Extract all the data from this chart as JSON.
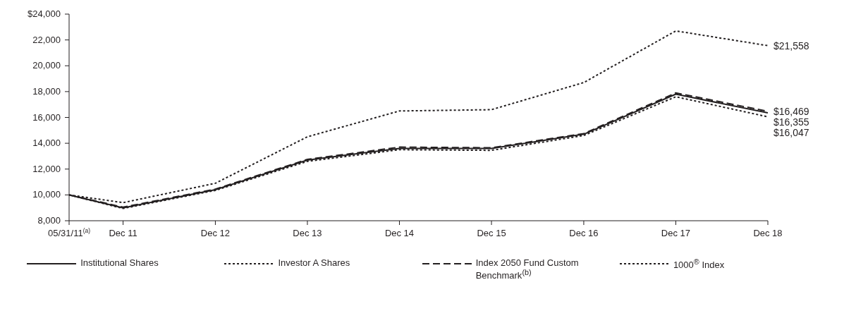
{
  "chart_data": {
    "type": "line",
    "x": [
      "2011-05-31",
      "2011-12-31",
      "2012-12-31",
      "2013-12-31",
      "2014-12-31",
      "2015-12-31",
      "2016-12-31",
      "2017-12-31",
      "2018-12-31"
    ],
    "series": [
      {
        "name": "Institutional Shares",
        "color": "#231f20",
        "line_style": "solid",
        "values": [
          10000,
          9000,
          10400,
          12700,
          13600,
          13600,
          14700,
          17800,
          16355
        ]
      },
      {
        "name": "Investor A Shares",
        "color": "#231f20",
        "line_style": "dotted",
        "values": [
          10000,
          8950,
          10350,
          12600,
          13500,
          13450,
          14600,
          17600,
          16047
        ]
      },
      {
        "name": "Index 2050 Fund Custom Benchmark$^{(b)}$",
        "color": "#231f20",
        "line_style": "dashed",
        "values": [
          10000,
          9050,
          10450,
          12750,
          13700,
          13650,
          14750,
          17900,
          16469
        ]
      },
      {
        "name": "1000$^{®}$ Index",
        "color": "#231f20",
        "line_style": "dotted",
        "values": [
          10000,
          9400,
          10900,
          14500,
          16500,
          16600,
          18700,
          22700,
          21558
        ]
      }
    ],
    "xlim": [
      "2011-05-31",
      "2018-12-31"
    ],
    "xticks": [
      {
        "value": "2011-05-31",
        "label": "05/31/11$^{(a)}$"
      },
      {
        "value": "2011-12-31",
        "label": "Dec 11"
      },
      {
        "value": "2012-12-31",
        "label": "Dec 12"
      },
      {
        "value": "2013-12-31",
        "label": "Dec 13"
      },
      {
        "value": "2014-12-31",
        "label": "Dec 14"
      },
      {
        "value": "2015-12-31",
        "label": "Dec 15"
      },
      {
        "value": "2016-12-31",
        "label": "Dec 16"
      },
      {
        "value": "2017-12-31",
        "label": "Dec 17"
      },
      {
        "value": "2018-12-31",
        "label": "Dec 18"
      }
    ],
    "ylim": [
      8000,
      24000
    ],
    "yticks": [
      {
        "value": 8000,
        "label": "8,000"
      },
      {
        "value": 10000,
        "label": "10,000"
      },
      {
        "value": 12000,
        "label": "12,000"
      },
      {
        "value": 14000,
        "label": "14,000"
      },
      {
        "value": 16000,
        "label": "16,000"
      },
      {
        "value": 18000,
        "label": "18,000"
      },
      {
        "value": 20000,
        "label": "20,000"
      },
      {
        "value": 22000,
        "label": "22,000"
      },
      {
        "value": 24000,
        "label": "$24,000"
      }
    ],
    "annotations": [
      {
        "text": "$21,558",
        "x": "2018-12-31",
        "y": 21558
      },
      {
        "text": "$16,469",
        "x": "2018-12-31",
        "y": 16469
      },
      {
        "text": "$16,355",
        "x": "2018-12-31",
        "y": 16355
      },
      {
        "text": "$16,047",
        "x": "2018-12-31",
        "y": 16047
      }
    ],
    "grid": false,
    "legend": "bottom",
    "marker": "none"
  }
}
